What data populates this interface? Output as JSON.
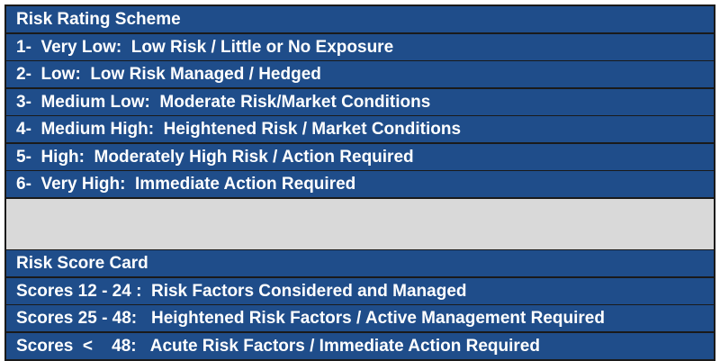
{
  "rating_scheme": {
    "title": "Risk Rating Scheme",
    "items": [
      "1-  Very Low:  Low Risk / Little or No Exposure",
      "2-  Low:  Low Risk Managed / Hedged",
      "3-  Medium Low:  Moderate Risk/Market Conditions",
      "4-  Medium High:  Heightened Risk / Market Conditions",
      "5-  High:  Moderately High Risk / Action Required",
      "6-  Very High:  Immediate Action Required"
    ]
  },
  "score_card": {
    "title": "Risk Score Card",
    "items": [
      "Scores 12 - 24 :  Risk Factors Considered and Managed",
      "Scores 25 - 48:   Heightened Risk Factors / Active Management Required",
      "Scores  <    48:   Acute Risk Factors / Immediate Action Required"
    ]
  },
  "colors": {
    "row": "#1f4d8a",
    "gap": "#d9d9d9",
    "text": "#ffffff"
  }
}
